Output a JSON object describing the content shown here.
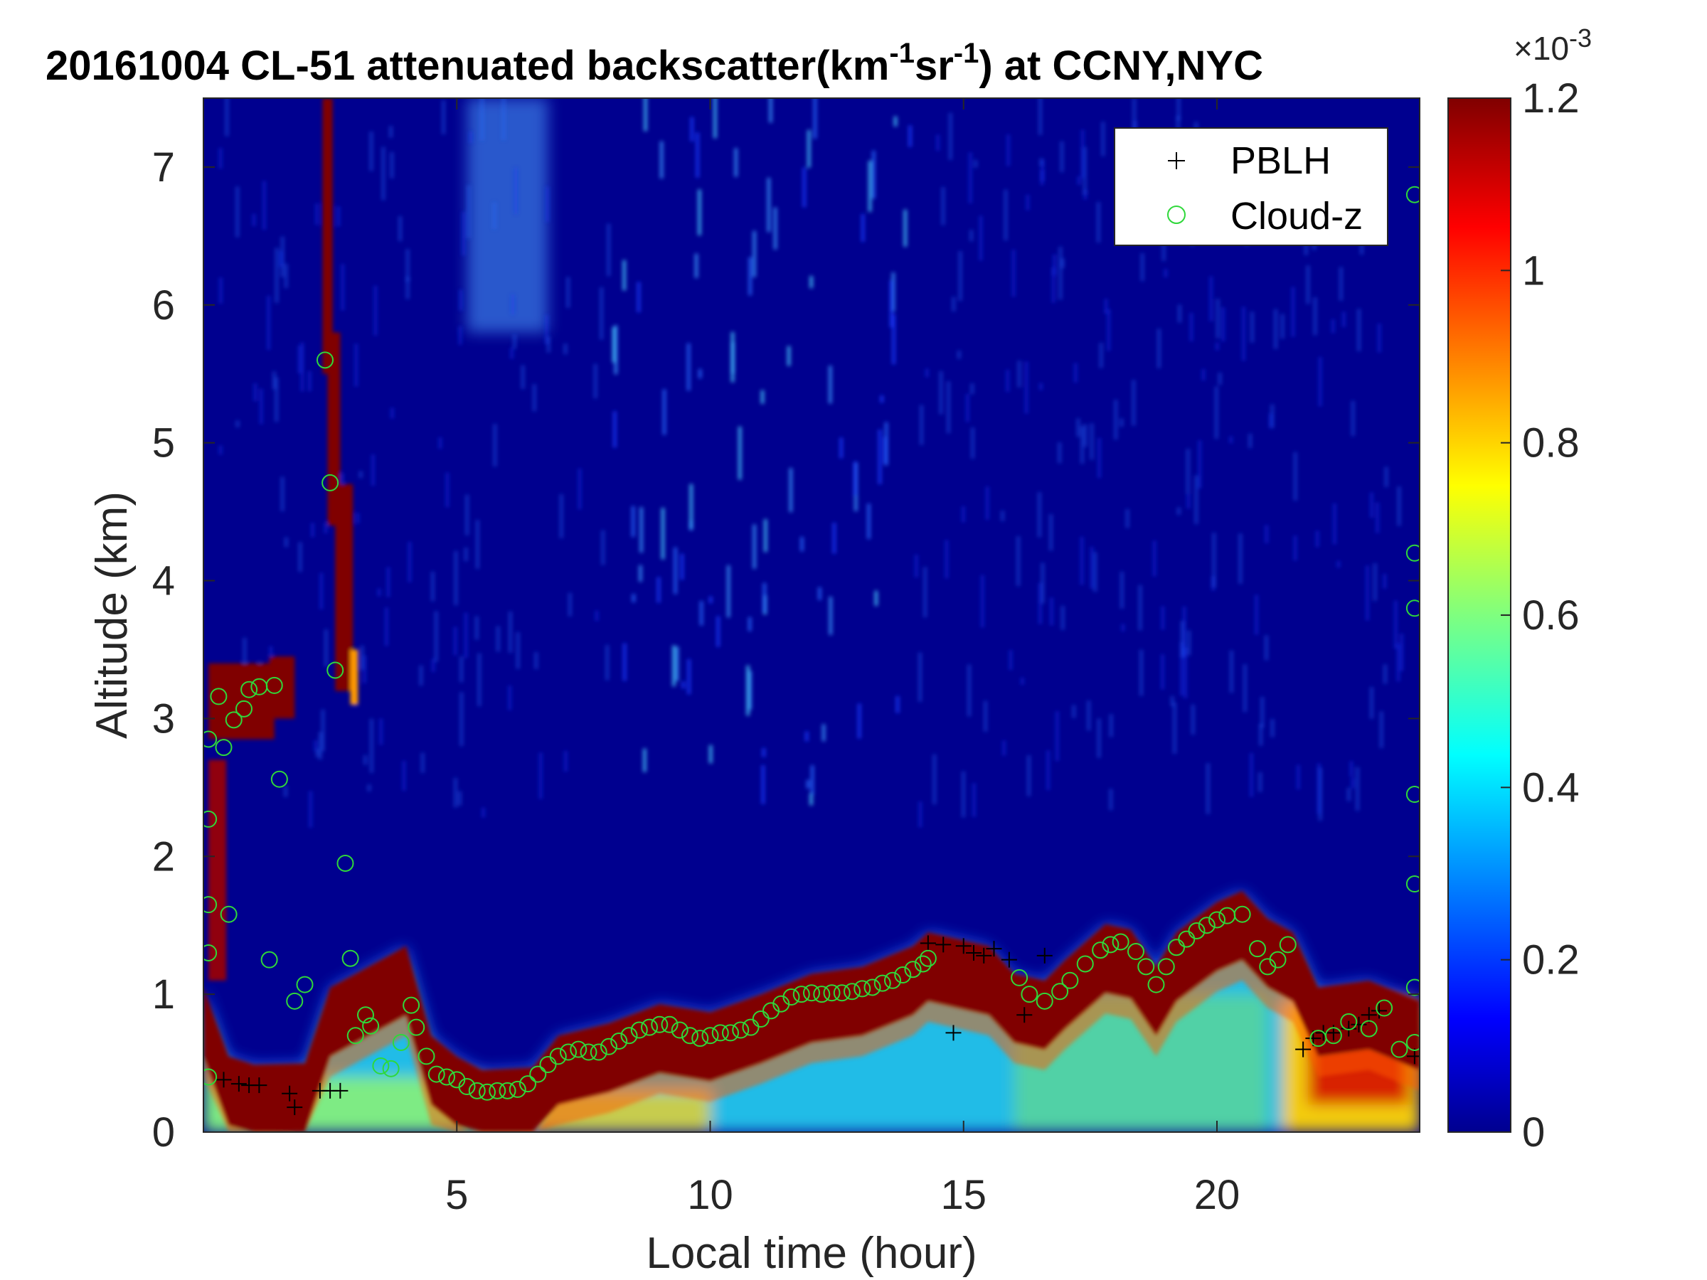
{
  "chart_data": {
    "type": "heatmap",
    "title_prefix": "20161004  CL-51 attenuated backscatter(km",
    "title_sup1": "-1",
    "title_mid": "sr",
    "title_sup2": "-1",
    "title_suffix": ") at CCNY,NYC",
    "xlabel": "Local time (hour)",
    "ylabel": "Altitude (km)",
    "xlim": [
      0,
      24
    ],
    "ylim": [
      0,
      7.5
    ],
    "xticks": [
      5,
      10,
      15,
      20
    ],
    "yticks": [
      0,
      1,
      2,
      3,
      4,
      5,
      6,
      7
    ],
    "colormap": "jet",
    "colorbar": {
      "clim": [
        0,
        1.2
      ],
      "ticks": [
        "0",
        "0.2",
        "0.4",
        "0.6",
        "0.8",
        "1",
        "1.2"
      ],
      "exponent_base": "×10",
      "exponent": "-3"
    },
    "legend": {
      "position": "top-right",
      "entries": [
        {
          "label": "PBLH",
          "marker": "+",
          "color": "#000000"
        },
        {
          "label": "Cloud-z",
          "marker": "o",
          "color": "#2fd83a"
        }
      ]
    },
    "series": [
      {
        "name": "PBLH",
        "marker": "+",
        "points": [
          [
            0.4,
            0.38
          ],
          [
            0.7,
            0.35
          ],
          [
            0.9,
            0.34
          ],
          [
            1.1,
            0.34
          ],
          [
            1.7,
            0.28
          ],
          [
            1.8,
            0.18
          ],
          [
            2.3,
            0.3
          ],
          [
            2.5,
            0.3
          ],
          [
            2.7,
            0.3
          ],
          [
            14.3,
            1.37
          ],
          [
            14.6,
            1.36
          ],
          [
            14.8,
            0.72
          ],
          [
            15.0,
            1.35
          ],
          [
            15.2,
            1.3
          ],
          [
            15.4,
            1.28
          ],
          [
            15.6,
            1.33
          ],
          [
            15.9,
            1.25
          ],
          [
            16.2,
            0.85
          ],
          [
            16.6,
            1.28
          ],
          [
            21.7,
            0.6
          ],
          [
            21.9,
            0.68
          ],
          [
            22.1,
            0.72
          ],
          [
            22.3,
            0.72
          ],
          [
            22.6,
            0.75
          ],
          [
            22.8,
            0.78
          ],
          [
            23.0,
            0.85
          ],
          [
            23.2,
            0.88
          ],
          [
            23.9,
            0.55
          ]
        ]
      },
      {
        "name": "Cloud-z",
        "marker": "o",
        "points": [
          [
            0.1,
            2.85
          ],
          [
            0.1,
            2.27
          ],
          [
            0.1,
            1.65
          ],
          [
            0.1,
            1.3
          ],
          [
            0.1,
            0.4
          ],
          [
            0.3,
            3.16
          ],
          [
            0.4,
            2.79
          ],
          [
            0.5,
            1.58
          ],
          [
            0.6,
            2.99
          ],
          [
            0.8,
            3.07
          ],
          [
            0.9,
            3.21
          ],
          [
            1.1,
            3.23
          ],
          [
            1.4,
            3.24
          ],
          [
            1.5,
            2.56
          ],
          [
            1.3,
            1.25
          ],
          [
            1.8,
            0.95
          ],
          [
            2.0,
            1.07
          ],
          [
            2.4,
            5.6
          ],
          [
            2.5,
            4.71
          ],
          [
            2.6,
            3.35
          ],
          [
            2.8,
            1.95
          ],
          [
            2.9,
            1.26
          ],
          [
            3.0,
            0.7
          ],
          [
            3.2,
            0.85
          ],
          [
            3.3,
            0.77
          ],
          [
            3.5,
            0.48
          ],
          [
            3.7,
            0.46
          ],
          [
            3.9,
            0.65
          ],
          [
            4.1,
            0.92
          ],
          [
            4.2,
            0.76
          ],
          [
            4.4,
            0.55
          ],
          [
            4.6,
            0.42
          ],
          [
            4.8,
            0.4
          ],
          [
            5.0,
            0.38
          ],
          [
            5.2,
            0.33
          ],
          [
            5.4,
            0.3
          ],
          [
            5.6,
            0.29
          ],
          [
            5.8,
            0.3
          ],
          [
            6.0,
            0.3
          ],
          [
            6.2,
            0.31
          ],
          [
            6.4,
            0.35
          ],
          [
            6.6,
            0.42
          ],
          [
            6.8,
            0.49
          ],
          [
            7.0,
            0.55
          ],
          [
            7.2,
            0.58
          ],
          [
            7.4,
            0.6
          ],
          [
            7.6,
            0.58
          ],
          [
            7.8,
            0.58
          ],
          [
            8.0,
            0.62
          ],
          [
            8.2,
            0.66
          ],
          [
            8.4,
            0.7
          ],
          [
            8.6,
            0.74
          ],
          [
            8.8,
            0.76
          ],
          [
            9.0,
            0.78
          ],
          [
            9.2,
            0.78
          ],
          [
            9.4,
            0.74
          ],
          [
            9.6,
            0.7
          ],
          [
            9.8,
            0.68
          ],
          [
            10.0,
            0.7
          ],
          [
            10.2,
            0.72
          ],
          [
            10.4,
            0.72
          ],
          [
            10.6,
            0.74
          ],
          [
            10.8,
            0.76
          ],
          [
            11.0,
            0.82
          ],
          [
            11.2,
            0.88
          ],
          [
            11.4,
            0.93
          ],
          [
            11.6,
            0.98
          ],
          [
            11.8,
            1.0
          ],
          [
            12.0,
            1.01
          ],
          [
            12.2,
            1.0
          ],
          [
            12.4,
            1.01
          ],
          [
            12.6,
            1.01
          ],
          [
            12.8,
            1.02
          ],
          [
            13.0,
            1.04
          ],
          [
            13.2,
            1.05
          ],
          [
            13.4,
            1.08
          ],
          [
            13.6,
            1.1
          ],
          [
            13.8,
            1.14
          ],
          [
            14.0,
            1.18
          ],
          [
            14.2,
            1.22
          ],
          [
            14.3,
            1.26
          ],
          [
            16.1,
            1.12
          ],
          [
            16.3,
            1.0
          ],
          [
            16.6,
            0.95
          ],
          [
            16.9,
            1.02
          ],
          [
            17.1,
            1.1
          ],
          [
            17.4,
            1.22
          ],
          [
            17.7,
            1.32
          ],
          [
            17.9,
            1.36
          ],
          [
            18.1,
            1.38
          ],
          [
            18.4,
            1.31
          ],
          [
            18.6,
            1.2
          ],
          [
            18.8,
            1.07
          ],
          [
            19.0,
            1.2
          ],
          [
            19.2,
            1.34
          ],
          [
            19.4,
            1.4
          ],
          [
            19.6,
            1.46
          ],
          [
            19.8,
            1.5
          ],
          [
            20.0,
            1.54
          ],
          [
            20.2,
            1.57
          ],
          [
            20.5,
            1.58
          ],
          [
            20.8,
            1.33
          ],
          [
            21.0,
            1.2
          ],
          [
            21.2,
            1.25
          ],
          [
            21.4,
            1.36
          ],
          [
            22.0,
            0.68
          ],
          [
            22.3,
            0.7
          ],
          [
            22.6,
            0.8
          ],
          [
            23.0,
            0.75
          ],
          [
            23.3,
            0.9
          ],
          [
            23.6,
            0.6
          ],
          [
            23.9,
            6.8
          ],
          [
            23.9,
            4.2
          ],
          [
            23.9,
            3.8
          ],
          [
            23.9,
            2.45
          ],
          [
            23.9,
            1.8
          ],
          [
            23.9,
            1.05
          ],
          [
            23.9,
            0.65
          ]
        ]
      }
    ]
  }
}
